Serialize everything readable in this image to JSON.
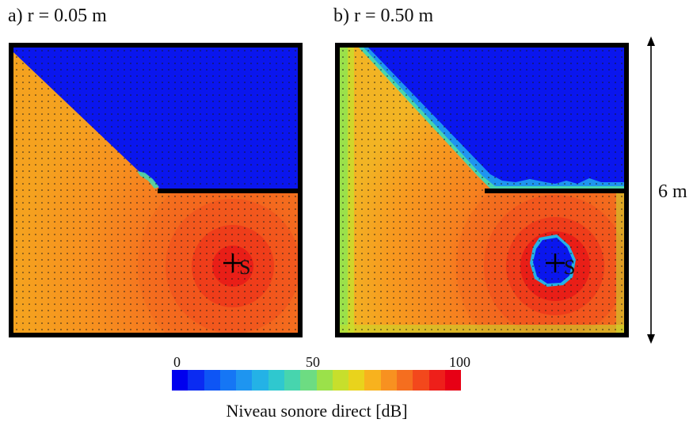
{
  "panels": [
    {
      "label": "a) r = 0.05 m",
      "source_label": "S"
    },
    {
      "label": "b) r = 0.50 m",
      "source_label": "S"
    }
  ],
  "dimension": {
    "label": "6 m"
  },
  "colorbar": {
    "title": "Niveau sonore direct  [dB]",
    "ticks": [
      "0",
      "50",
      "100"
    ],
    "colors": [
      "#0000ee",
      "#0a2bf2",
      "#0e55f5",
      "#1576f5",
      "#1e95f0",
      "#24b2e6",
      "#2fc8cf",
      "#47d5ae",
      "#6ddc82",
      "#9be14a",
      "#c7df2c",
      "#e9d31c",
      "#f8b21e",
      "#f89120",
      "#f56e1f",
      "#f3481c",
      "#ee1f1a",
      "#e70015"
    ]
  }
}
